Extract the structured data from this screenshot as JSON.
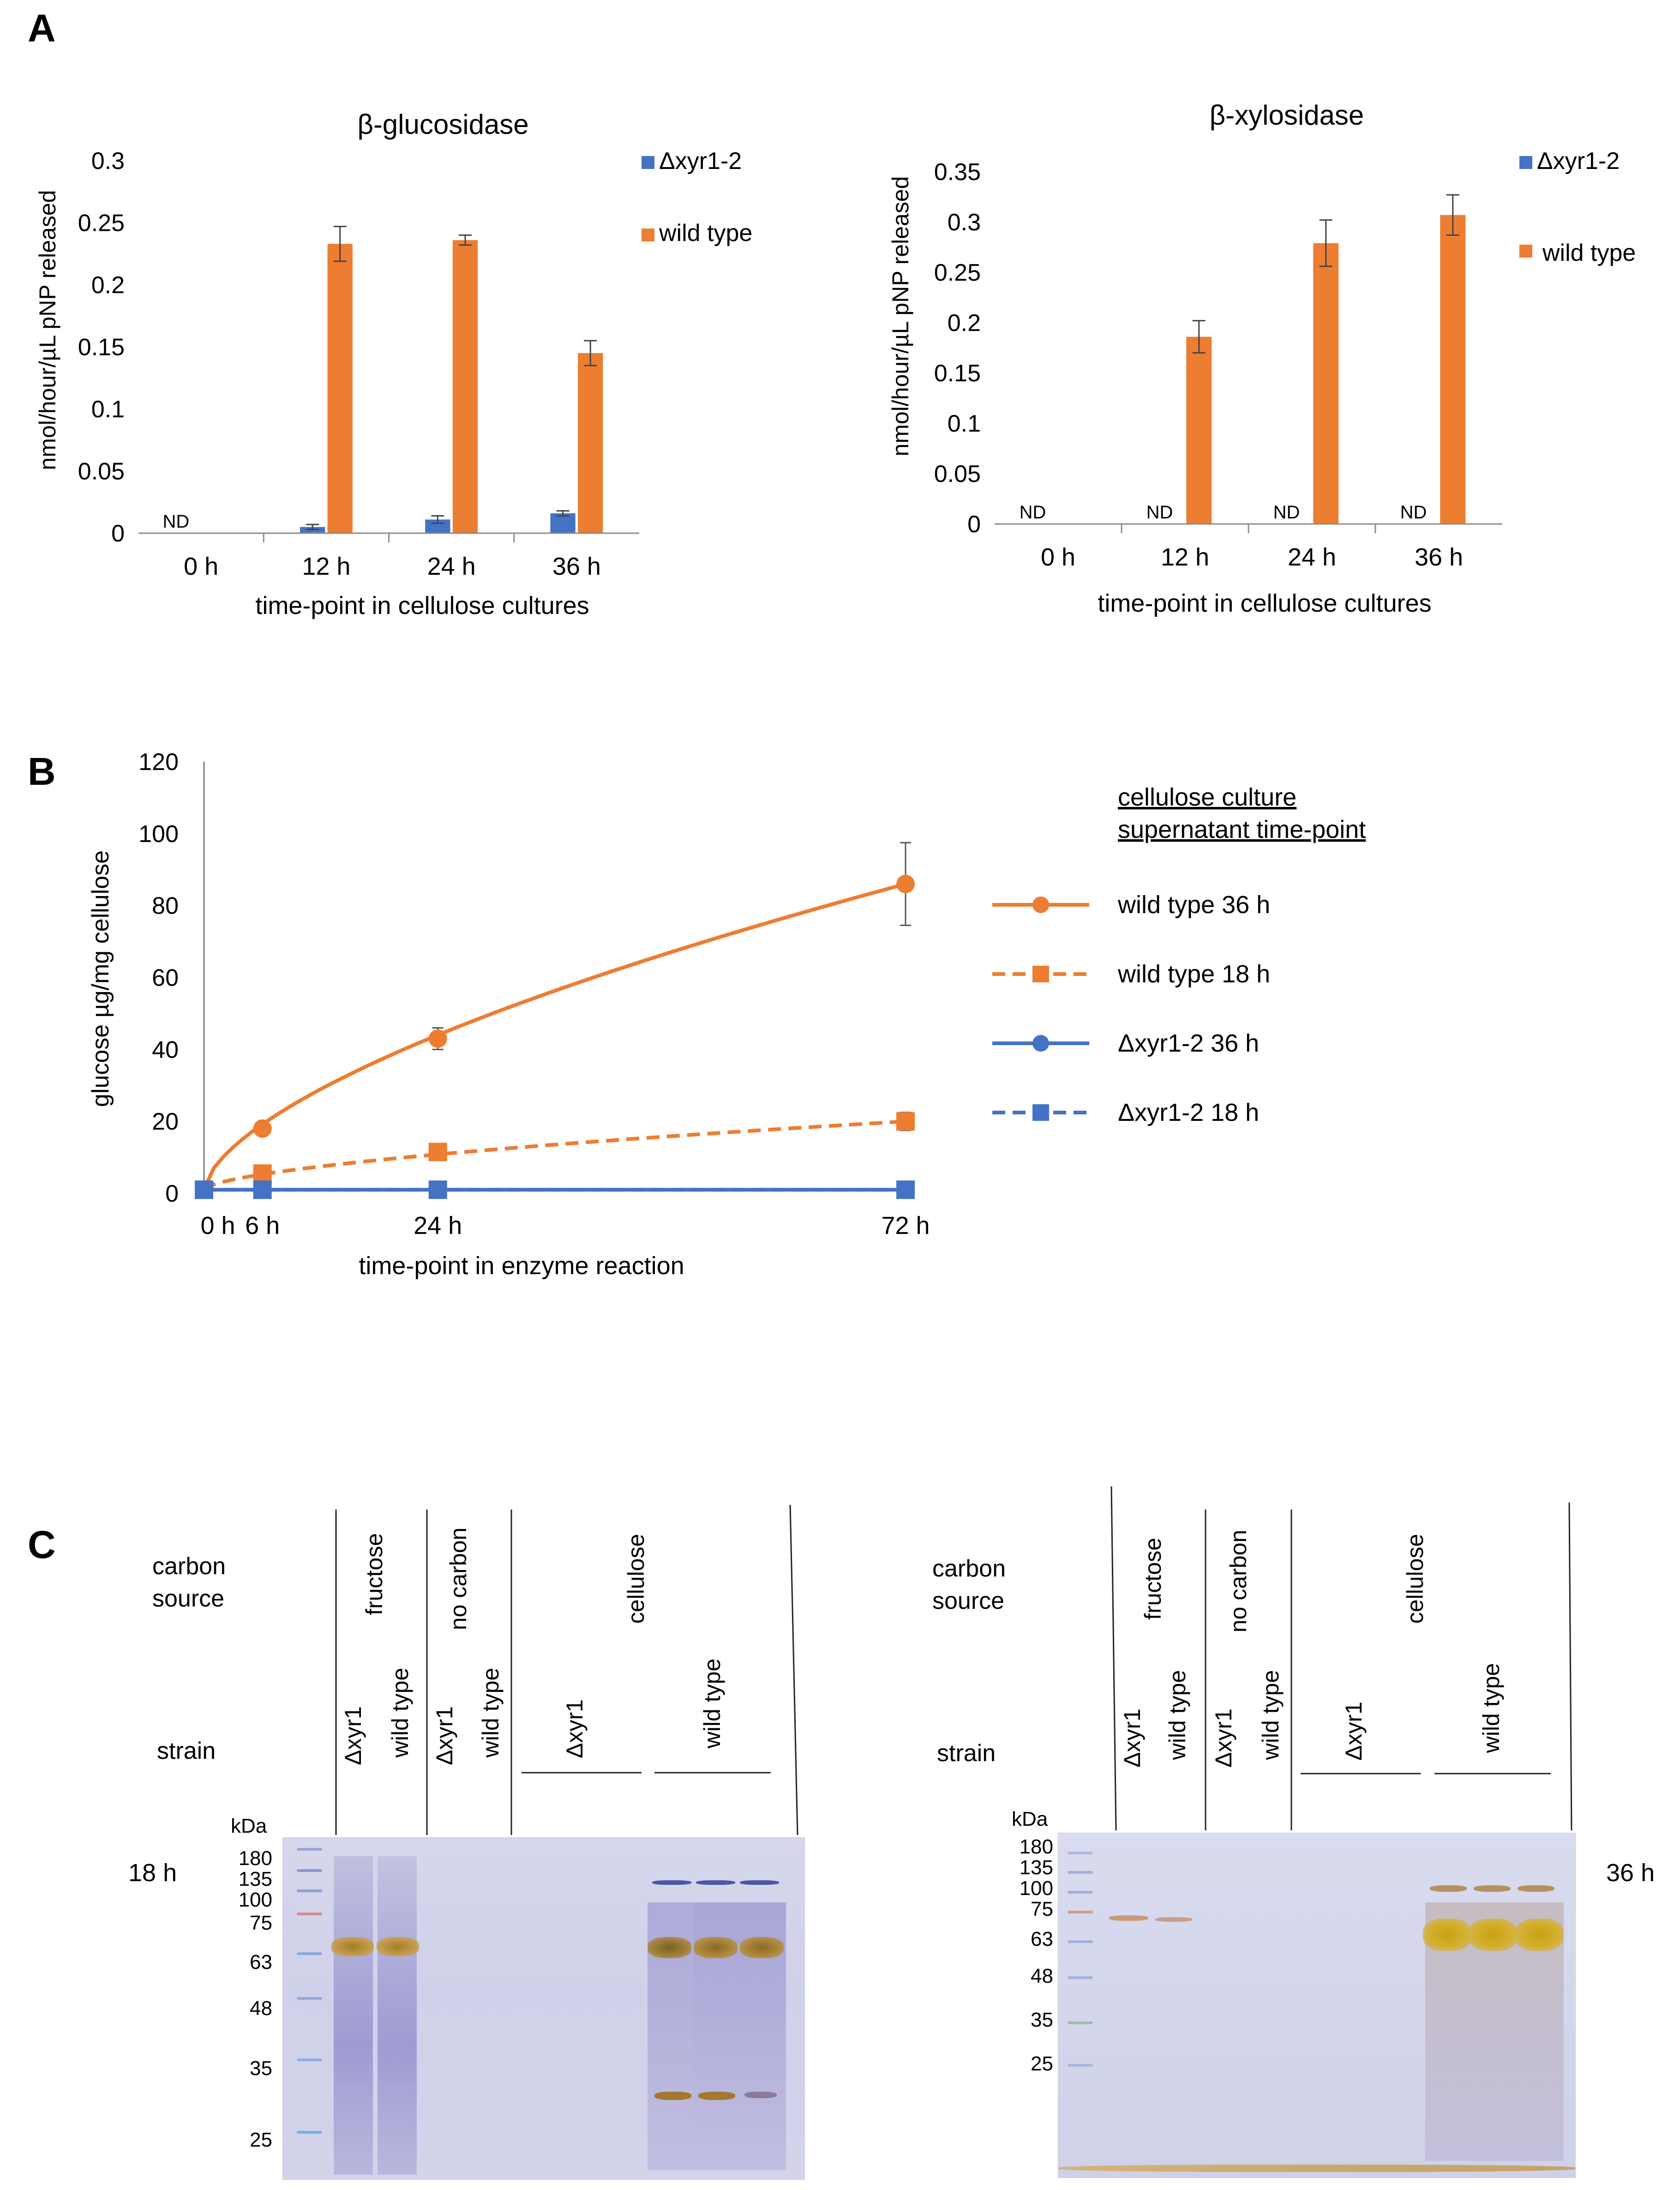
{
  "panels": {
    "A": "A",
    "B": "B",
    "C": "C"
  },
  "chart_data": [
    {
      "id": "A1",
      "type": "bar",
      "title": "β-glucosidase",
      "xlabel": "time-point  in  cellulose  cultures",
      "ylabel": "nmol/hour/µL  pNP  released",
      "categories": [
        "0 h",
        "12 h",
        "24 h",
        "36 h"
      ],
      "ylim": [
        0,
        0.3
      ],
      "yticks": [
        "0",
        "0.05",
        "0.1",
        "0.15",
        "0.2",
        "0.25",
        "0.3"
      ],
      "legend_position": "top-right",
      "series": [
        {
          "name": "Δxyr1-2",
          "color": "#4472c4",
          "values": [
            null,
            0.005,
            0.011,
            0.016
          ],
          "errors": [
            0,
            0.002,
            0.003,
            0.002
          ],
          "nd_label": [
            "ND",
            "",
            "",
            ""
          ]
        },
        {
          "name": "wild type",
          "color": "#ed7d31",
          "values": [
            null,
            0.233,
            0.236,
            0.145
          ],
          "errors": [
            0,
            0.014,
            0.004,
            0.01
          ],
          "nd_label": [
            "",
            "",
            "",
            ""
          ]
        }
      ]
    },
    {
      "id": "A2",
      "type": "bar",
      "title": "β-xylosidase",
      "xlabel": "time-point  in  cellulose  cultures",
      "ylabel": "nmol/hour/µL  pNP  released",
      "categories": [
        "0 h",
        "12 h",
        "24 h",
        "36 h"
      ],
      "ylim": [
        0,
        0.35
      ],
      "yticks": [
        "0",
        "0.05",
        "0.1",
        "0.15",
        "0.2",
        "0.25",
        "0.3",
        "0.35"
      ],
      "legend_position": "top-right",
      "series": [
        {
          "name": "Δxyr1-2",
          "color": "#4472c4",
          "values": [
            null,
            null,
            null,
            null
          ],
          "errors": [
            0,
            0,
            0,
            0
          ],
          "nd_label": [
            "ND",
            "ND",
            "ND",
            "ND"
          ]
        },
        {
          "name": "wild type",
          "color": "#ed7d31",
          "values": [
            null,
            0.186,
            0.279,
            0.307
          ],
          "errors": [
            0,
            0.016,
            0.023,
            0.02
          ],
          "nd_label": [
            "",
            "",
            "",
            ""
          ]
        }
      ]
    },
    {
      "id": "B",
      "type": "line",
      "xlabel": "time-point  in  enzyme  reaction",
      "ylabel": "glucose  µg/mg  cellulose",
      "x": [
        0,
        6,
        24,
        72
      ],
      "xtick_labels": [
        "0 h",
        "6 h",
        "24 h",
        "72 h"
      ],
      "ylim": [
        0,
        120
      ],
      "yticks": [
        "0",
        "20",
        "40",
        "60",
        "80",
        "100",
        "120"
      ],
      "legend_title": "cellulose  culture supernatant  time-point",
      "legend_title_lines": [
        "cellulose  culture",
        "supernatant  time-point"
      ],
      "legend_position": "right",
      "series": [
        {
          "name": "wild type  36 h",
          "color": "#ed7d31",
          "dash": false,
          "marker": "circle",
          "values": [
            1,
            18,
            43,
            86
          ],
          "errors": [
            0,
            1,
            3,
            11.5
          ]
        },
        {
          "name": "wild type  18 h",
          "color": "#ed7d31",
          "dash": true,
          "marker": "square",
          "values": [
            1,
            5.5,
            11.5,
            20
          ],
          "errors": [
            0,
            0.6,
            1,
            2.5
          ]
        },
        {
          "name": "Δxyr1-2  36 h",
          "color": "#4472c4",
          "dash": false,
          "marker": "circle",
          "values": [
            1,
            1,
            1,
            1
          ],
          "errors": [
            0,
            0,
            0,
            0
          ]
        },
        {
          "name": "Δxyr1-2  18 h",
          "color": "#4472c4",
          "dash": true,
          "marker": "square",
          "values": [
            1,
            1,
            1,
            1
          ],
          "errors": [
            0,
            0,
            0,
            0
          ]
        }
      ]
    }
  ],
  "gels": [
    {
      "id": "left",
      "row_labels": {
        "carbon_source": [
          "carbon",
          "source"
        ],
        "strain": "strain"
      },
      "carbon_groups": [
        "fructose",
        "no carbon",
        "cellulose"
      ],
      "strains": [
        "Δxyr1",
        "wild type",
        "Δxyr1",
        "wild type",
        "Δxyr1",
        "wild type"
      ],
      "kda_label": "kDa",
      "markers": [
        "180",
        "135",
        "100",
        "75",
        "63",
        "48",
        "35",
        "25"
      ],
      "time_label": "18 h"
    },
    {
      "id": "right",
      "row_labels": {
        "carbon_source": [
          "carbon",
          "source"
        ],
        "strain": "strain"
      },
      "carbon_groups": [
        "fructose",
        "no carbon",
        "cellulose"
      ],
      "strains": [
        "Δxyr1",
        "wild type",
        "Δxyr1",
        "wild type",
        "Δxyr1",
        "wild type"
      ],
      "kda_label": "kDa",
      "markers": [
        "180",
        "135",
        "100",
        "75",
        "63",
        "48",
        "35",
        "25"
      ],
      "time_label": "36 h"
    }
  ]
}
